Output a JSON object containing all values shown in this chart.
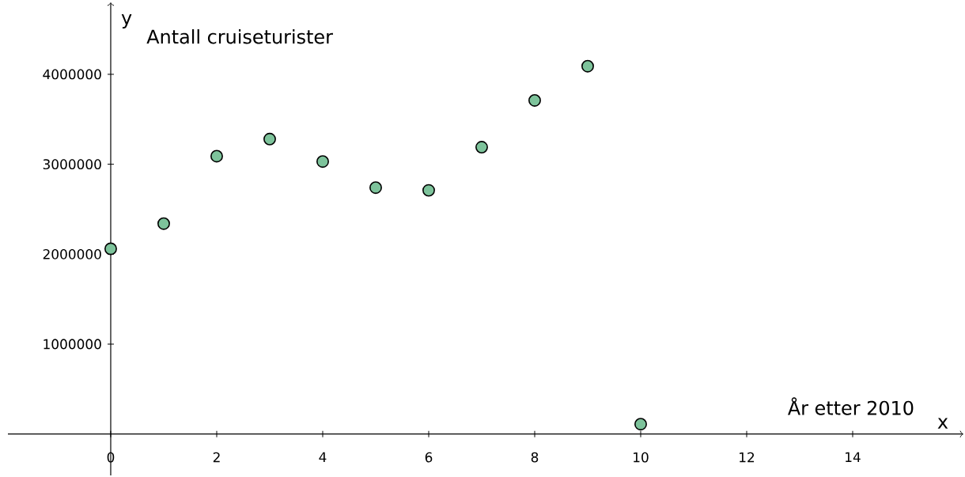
{
  "chart_data": {
    "type": "scatter",
    "xlabel": "År etter 2010",
    "ylabel": "Antall cruiseturister",
    "annotations": [
      "x",
      "y"
    ],
    "x": [
      0,
      1,
      2,
      3,
      4,
      5,
      6,
      7,
      8,
      9,
      10
    ],
    "values": [
      2060000,
      2340000,
      3090000,
      3280000,
      3030000,
      2740000,
      2710000,
      3190000,
      3710000,
      4090000,
      110000
    ],
    "color": "#7dc39b",
    "marker": "circle",
    "xlim": [
      -1.94,
      16.09
    ],
    "ylim": [
      -460000,
      4800000
    ],
    "xticks": [
      0,
      2,
      4,
      6,
      8,
      10,
      12,
      14
    ],
    "yticks": [
      1000000,
      2000000,
      3000000,
      4000000
    ]
  }
}
